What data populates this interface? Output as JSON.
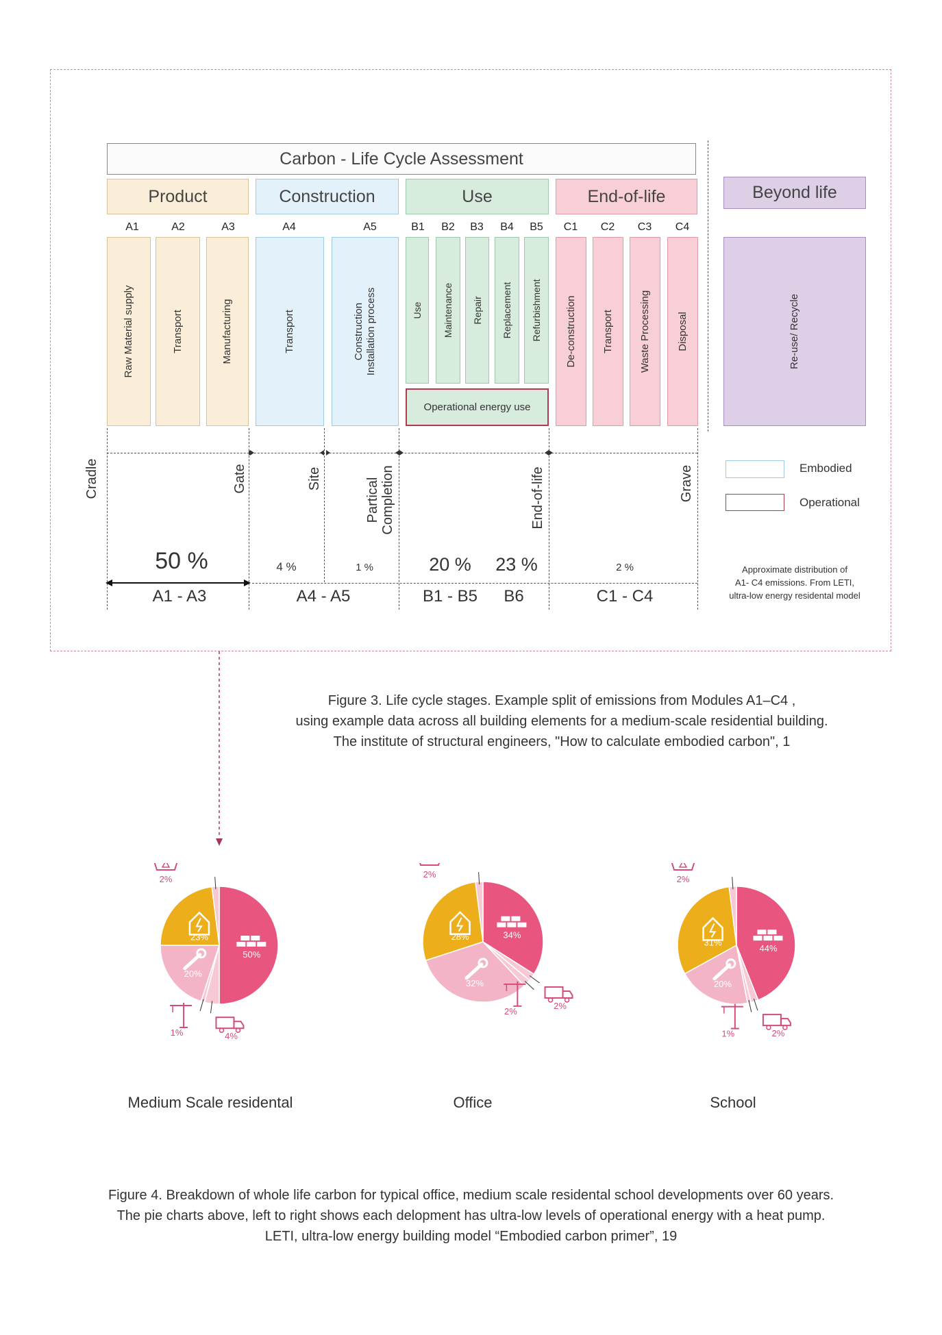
{
  "lca": {
    "title": "Carbon - Life Cycle Assessment",
    "stages": {
      "product": "Product",
      "construction": "Construction",
      "use": "Use",
      "end_of_life": "End-of-life",
      "beyond": "Beyond life"
    },
    "modules": [
      "A1",
      "A2",
      "A3",
      "A4",
      "A5",
      "B1",
      "B2",
      "B3",
      "B4",
      "B5",
      "C1",
      "C2",
      "C3",
      "C4"
    ],
    "processes": {
      "a1": "Raw Material supply",
      "a2": "Transport",
      "a3": "Manufacturing",
      "a4": "Transport",
      "a5_line1": "Construction",
      "a5_line2": "Installation process",
      "b1": "Use",
      "b2": "Maintenance",
      "b3": "Repair",
      "b4": "Replacement",
      "b5": "Refurbishment",
      "b6": "Operational energy use",
      "c1": "De-construction",
      "c2": "Transport",
      "c3": "Waste Processing",
      "c4": "Disposal",
      "d": "Re-use/ Recycle"
    },
    "milestones": {
      "cradle": "Cradle",
      "gate": "Gate",
      "site": "Site",
      "partial_line1": "Partical",
      "partial_line2": "Completion",
      "eol": "End-of-life",
      "grave": "Grave"
    },
    "legend": {
      "embodied": "Embodied",
      "operational": "Operational"
    },
    "percentages": {
      "a1_a3": "50 %",
      "a4": "4 %",
      "a5": "1 %",
      "b1_b5": "20 %",
      "b6": "23 %",
      "c": "2 %"
    },
    "groups": {
      "a": "A1 - A3",
      "a45": "A4 - A5",
      "b15": "B1 - B5",
      "b6": "B6",
      "c": "C1 - C4"
    },
    "note": [
      "Approximate distribution of",
      "A1- C4 emissions. From LETI,",
      "ultra-low energy residental model"
    ]
  },
  "figure3_caption": [
    "Figure 3. Life cycle stages. Example split of emissions from Modules A1–C4 ,",
    "using example data across all building elements for a medium-scale residential building.",
    "The institute of structural engineers, \"How to calculate embodied carbon\", 1"
  ],
  "chart_data": [
    {
      "type": "pie",
      "title": "Medium Scale residental",
      "labels": [
        "Product (A1-A3)",
        "Transport (A4)",
        "Construction (A5)",
        "Use (B1-B5)",
        "Operational energy (B6)",
        "End-of-life (C1-C4)"
      ],
      "values": [
        50,
        4,
        1,
        20,
        23,
        2
      ],
      "value_labels": [
        "50%",
        "4%",
        "1%",
        "20%",
        "23%",
        "2%"
      ]
    },
    {
      "type": "pie",
      "title": "Office",
      "labels": [
        "Product (A1-A3)",
        "Transport (A4)",
        "Construction (A5)",
        "Use (B1-B5)",
        "Operational energy (B6)",
        "End-of-life (C1-C4)"
      ],
      "values": [
        34,
        2,
        2,
        32,
        28,
        2
      ],
      "value_labels": [
        "34%",
        "2%",
        "2%",
        "32%",
        "28%",
        "2%"
      ]
    },
    {
      "type": "pie",
      "title": "School",
      "labels": [
        "Product (A1-A3)",
        "Transport (A4)",
        "Construction (A5)",
        "Use (B1-B5)",
        "Operational energy (B6)",
        "End-of-life (C1-C4)"
      ],
      "values": [
        44,
        2,
        1,
        20,
        31,
        2
      ],
      "value_labels": [
        "44%",
        "2%",
        "1%",
        "20%",
        "31%",
        "2%"
      ]
    }
  ],
  "colors": {
    "product": "#e8557e",
    "use": "#f3b5c6",
    "operational": "#ecae1a",
    "minor": "#f6c9d5",
    "icon": "#d44d7a"
  },
  "figure4_caption": [
    "Figure 4. Breakdown of whole life carbon for typical office, medium scale residental school developments over 60 years.",
    "The pie charts above, left to right shows each delopment has ultra-low levels of operational energy with a heat pump.",
    "LETI, ultra-low energy building model “Embodied carbon primer”, 19"
  ]
}
